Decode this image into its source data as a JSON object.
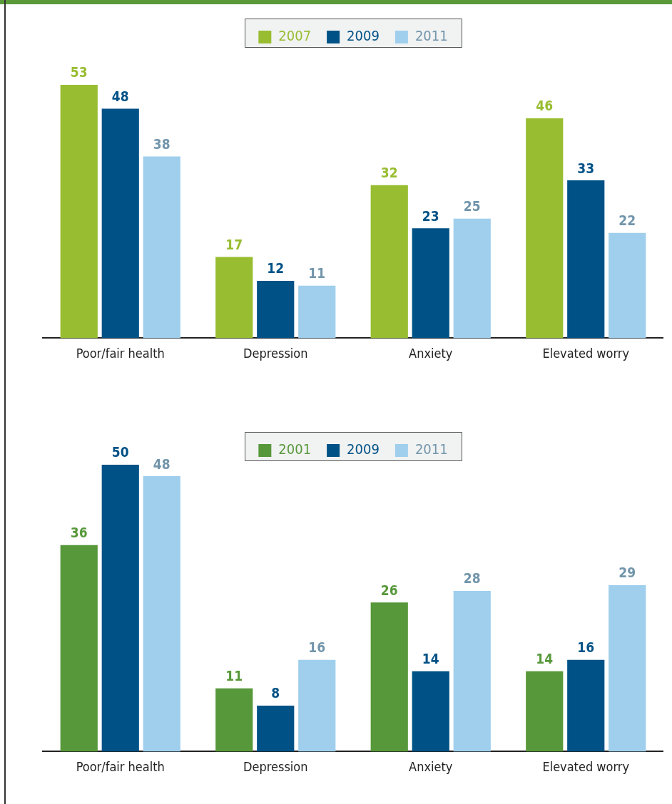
{
  "chart_data": [
    {
      "type": "bar",
      "categories": [
        "Poor/fair health",
        "Depression",
        "Anxiety",
        "Elevated worry"
      ],
      "series": [
        {
          "name": "2007",
          "color": "#98bd31",
          "values": [
            53,
            17,
            32,
            46
          ]
        },
        {
          "name": "2009",
          "color": "#005286",
          "values": [
            48,
            12,
            23,
            33
          ]
        },
        {
          "name": "2011",
          "color": "#9fcfed",
          "values": [
            38,
            11,
            25,
            22
          ]
        }
      ],
      "tick_labels": "x",
      "legend": "top",
      "data_labels": true,
      "grid": false
    },
    {
      "type": "bar",
      "categories": [
        "Poor/fair health",
        "Depression",
        "Anxiety",
        "Elevated worry"
      ],
      "series": [
        {
          "name": "2001",
          "color": "#57983a",
          "values": [
            36,
            11,
            26,
            14
          ]
        },
        {
          "name": "2009",
          "color": "#005286",
          "values": [
            50,
            8,
            14,
            16
          ]
        },
        {
          "name": "2011",
          "color": "#9fcfed",
          "values": [
            48,
            16,
            28,
            29
          ]
        }
      ],
      "tick_labels": "x",
      "legend": "top",
      "data_labels": true,
      "grid": false
    }
  ]
}
